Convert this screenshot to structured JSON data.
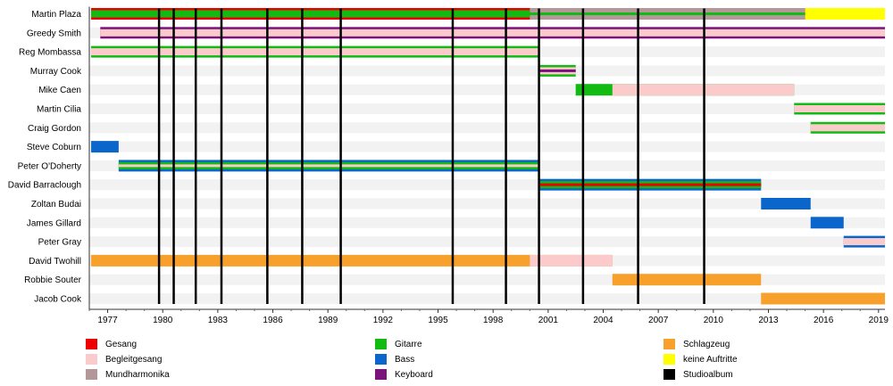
{
  "chart_data": {
    "type": "timeline",
    "title": "",
    "x_range": [
      1976.0,
      2019.35
    ],
    "x_ticks": [
      1977,
      1980,
      1983,
      1986,
      1989,
      1992,
      1995,
      1998,
      2001,
      2004,
      2007,
      2010,
      2013,
      2016,
      2019
    ],
    "grid": false,
    "members": [
      "Martin Plaza",
      "Greedy Smith",
      "Reg Mombassa",
      "Murray Cook",
      "Mike Caen",
      "Martin Cilia",
      "Craig Gordon",
      "Steve Coburn",
      "Peter O'Doherty",
      "David Barraclough",
      "Zoltan Budai",
      "James Gillard",
      "Peter Gray",
      "David Twohill",
      "Robbie Souter",
      "Jacob Cook"
    ],
    "spans": [
      {
        "member": "Martin Plaza",
        "role": "Gesang",
        "start": 1976.1,
        "end": 2019.35
      },
      {
        "member": "Martin Plaza",
        "role": "Gitarre",
        "start": 1976.1,
        "end": 2000.0
      },
      {
        "member": "Martin Plaza",
        "role": "Mundharmonika",
        "start": 2000.0,
        "end": 2015.0
      },
      {
        "member": "Martin Plaza",
        "role": "Gitarre",
        "start": 2000.0,
        "end": 2015.0
      },
      {
        "member": "Martin Plaza",
        "role": "keine Auftritte",
        "start": 2015.0,
        "end": 2019.35
      },
      {
        "member": "Greedy Smith",
        "role": "Keyboard",
        "start": 1976.6,
        "end": 2019.35
      },
      {
        "member": "Greedy Smith",
        "role": "Begleitgesang",
        "start": 1976.6,
        "end": 2019.35
      },
      {
        "member": "Reg Mombassa",
        "role": "Gitarre",
        "start": 1976.1,
        "end": 2000.5
      },
      {
        "member": "Reg Mombassa",
        "role": "Begleitgesang",
        "start": 1976.1,
        "end": 2000.5
      },
      {
        "member": "Murray Cook",
        "role": "Gitarre",
        "start": 2000.5,
        "end": 2002.5
      },
      {
        "member": "Murray Cook",
        "role": "Begleitgesang",
        "start": 2000.5,
        "end": 2002.5
      },
      {
        "member": "Murray Cook",
        "role": "Keyboard",
        "start": 2000.5,
        "end": 2002.5
      },
      {
        "member": "Mike Caen",
        "role": "Gitarre",
        "start": 2002.5,
        "end": 2014.4
      },
      {
        "member": "Mike Caen",
        "role": "Begleitgesang",
        "start": 2004.5,
        "end": 2014.4
      },
      {
        "member": "Martin Cilia",
        "role": "Gitarre",
        "start": 2014.4,
        "end": 2019.35
      },
      {
        "member": "Martin Cilia",
        "role": "Begleitgesang",
        "start": 2014.4,
        "end": 2019.35
      },
      {
        "member": "Craig Gordon",
        "role": "Gitarre",
        "start": 2015.3,
        "end": 2019.35
      },
      {
        "member": "Craig Gordon",
        "role": "Begleitgesang",
        "start": 2015.3,
        "end": 2019.35
      },
      {
        "member": "Steve Coburn",
        "role": "Bass",
        "start": 1976.1,
        "end": 1977.6
      },
      {
        "member": "Peter O'Doherty",
        "role": "Bass",
        "start": 1977.6,
        "end": 2000.5
      },
      {
        "member": "Peter O'Doherty",
        "role": "Gitarre",
        "start": 1977.6,
        "end": 2000.5
      },
      {
        "member": "Peter O'Doherty",
        "role": "Begleitgesang",
        "start": 1977.6,
        "end": 2000.5
      },
      {
        "member": "David Barraclough",
        "role": "Bass",
        "start": 2000.5,
        "end": 2012.6
      },
      {
        "member": "David Barraclough",
        "role": "Gitarre",
        "start": 2000.5,
        "end": 2012.6
      },
      {
        "member": "David Barraclough",
        "role": "Gesang",
        "start": 2000.5,
        "end": 2012.6
      },
      {
        "member": "Zoltan Budai",
        "role": "Bass",
        "start": 2012.6,
        "end": 2015.3
      },
      {
        "member": "James Gillard",
        "role": "Bass",
        "start": 2015.3,
        "end": 2017.1
      },
      {
        "member": "Peter Gray",
        "role": "Bass",
        "start": 2017.1,
        "end": 2019.35
      },
      {
        "member": "Peter Gray",
        "role": "Begleitgesang",
        "start": 2017.1,
        "end": 2019.35
      },
      {
        "member": "David Twohill",
        "role": "Schlagzeug",
        "start": 1976.1,
        "end": 2004.5
      },
      {
        "member": "David Twohill",
        "role": "Begleitgesang",
        "start": 2000.0,
        "end": 2004.5
      },
      {
        "member": "Robbie Souter",
        "role": "Schlagzeug",
        "start": 2004.5,
        "end": 2012.6
      },
      {
        "member": "Jacob Cook",
        "role": "Schlagzeug",
        "start": 2012.6,
        "end": 2019.35
      }
    ],
    "studio_albums": [
      1979.8,
      1980.6,
      1981.8,
      1983.2,
      1985.7,
      1987.6,
      1989.7,
      1995.8,
      1998.7,
      2000.5,
      2002.9,
      2005.9,
      2009.5
    ],
    "legend": [
      {
        "label": "Gesang",
        "color": "#ee0000"
      },
      {
        "label": "Begleitgesang",
        "color": "#fbcaca"
      },
      {
        "label": "Mundharmonika",
        "color": "#b39899"
      },
      {
        "label": "Gitarre",
        "color": "#11bb11"
      },
      {
        "label": "Bass",
        "color": "#0b66cc"
      },
      {
        "label": "Keyboard",
        "color": "#7c127c"
      },
      {
        "label": "Schlagzeug",
        "color": "#f8a02c"
      },
      {
        "label": "keine Auftritte",
        "color": "#ffff00"
      },
      {
        "label": "Studioalbum",
        "color": "#000000"
      }
    ],
    "legend_placement": "bottom"
  }
}
